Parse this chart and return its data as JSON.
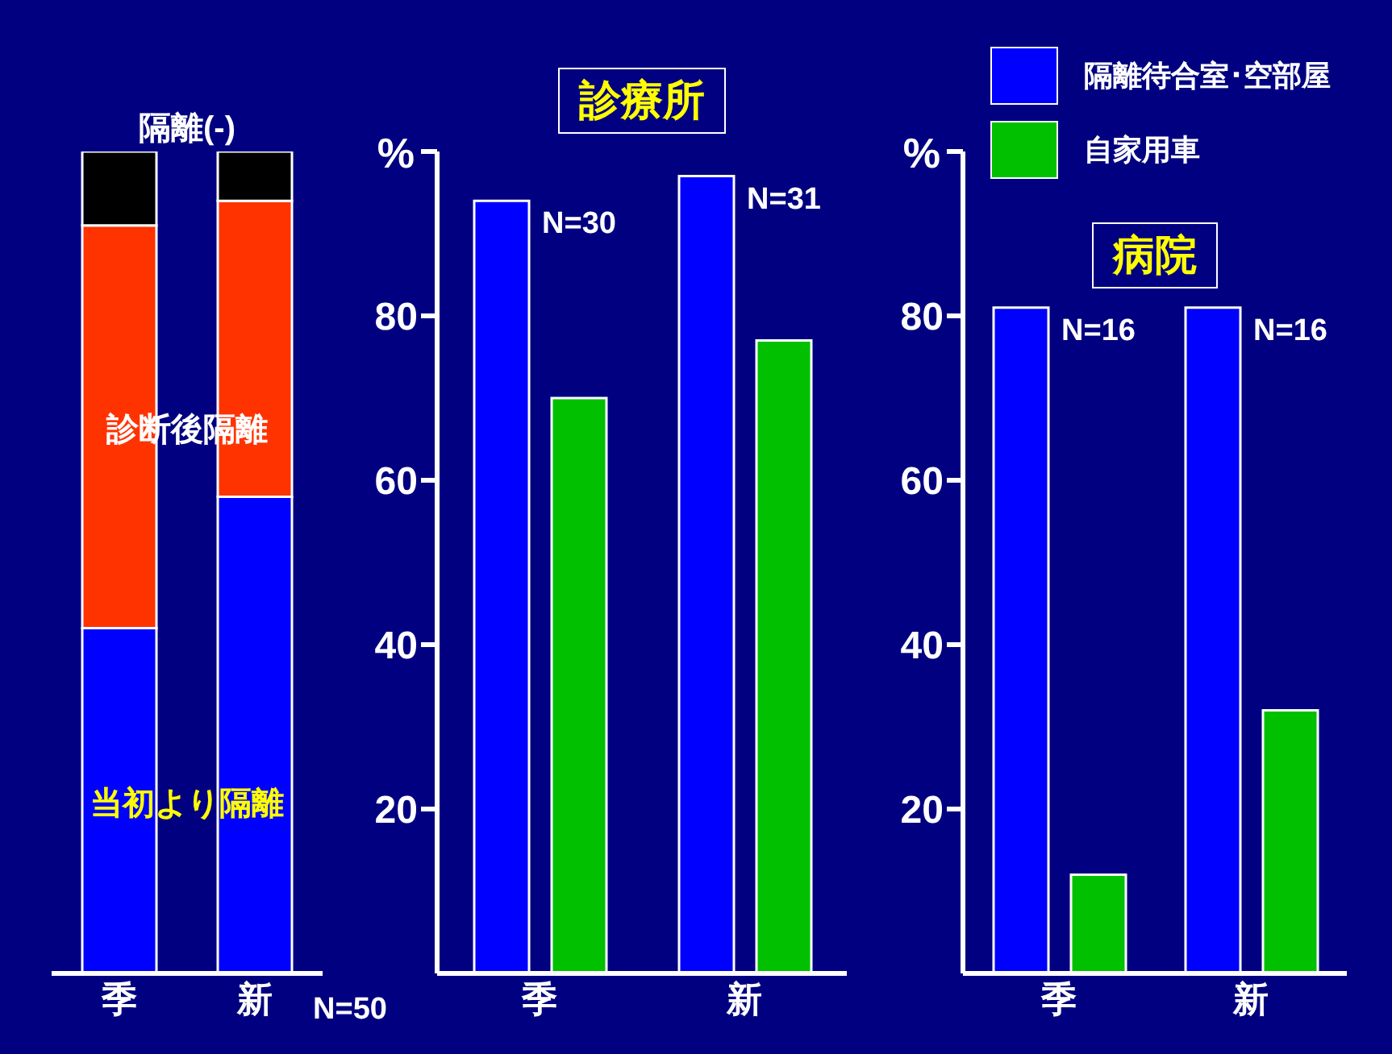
{
  "chart_data": [
    {
      "type": "bar",
      "stacked": true,
      "categories": [
        "季",
        "新"
      ],
      "ylim": [
        0,
        100
      ],
      "tick_labels": "x",
      "legend": false,
      "series": [
        {
          "name": "当初より隔離",
          "color": "#0000ff",
          "values": [
            42,
            58
          ]
        },
        {
          "name": "診断後隔離",
          "color": "#ff3300",
          "values": [
            49,
            36
          ]
        },
        {
          "name": "隔離(-)",
          "color": "#000000",
          "values": [
            9,
            6
          ]
        }
      ],
      "annotations": [
        "N=50"
      ]
    },
    {
      "type": "bar",
      "title": "診療所",
      "ylabel": "%",
      "categories": [
        "季",
        "新"
      ],
      "ylim": [
        0,
        100
      ],
      "yticks": [
        20,
        40,
        60,
        80,
        {
          "value": 100,
          "label": null
        }
      ],
      "legend": false,
      "series": [
        {
          "color": "#0000ff",
          "values": [
            94,
            97
          ]
        },
        {
          "color": "#00c000",
          "values": [
            70,
            77
          ]
        }
      ],
      "annotations": [
        "N=30",
        "N=31"
      ]
    },
    {
      "type": "bar",
      "title": "病院",
      "ylabel": "%",
      "categories": [
        "季",
        "新"
      ],
      "ylim": [
        0,
        100
      ],
      "yticks": [
        20,
        40,
        60,
        80,
        {
          "value": 100,
          "label": null
        }
      ],
      "legend": "top right",
      "series": [
        {
          "name": "隔離待合室･空部屋",
          "color": "#0000ff",
          "values": [
            81,
            81
          ]
        },
        {
          "name": "自家用車",
          "color": "#00c000",
          "values": [
            12,
            32
          ]
        }
      ],
      "annotations": [
        "N=16",
        "N=16"
      ]
    }
  ]
}
